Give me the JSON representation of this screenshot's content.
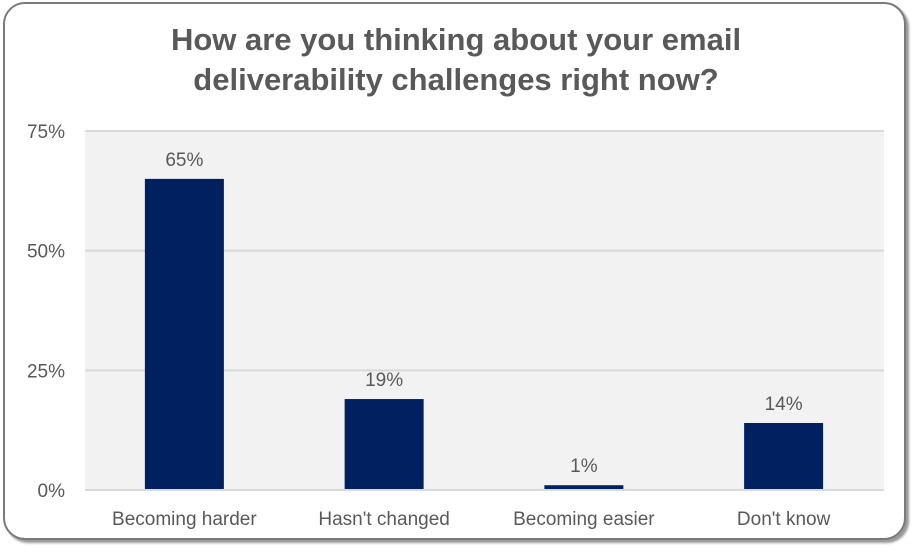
{
  "chart_data": {
    "type": "bar",
    "title_line1": "How are you thinking about your email",
    "title_line2": "deliverability challenges right now?",
    "categories": [
      "Becoming harder",
      "Hasn't changed",
      "Becoming easier",
      "Don't know"
    ],
    "values": [
      65,
      19,
      1,
      14
    ],
    "data_labels": [
      "65%",
      "19%",
      "1%",
      "14%"
    ],
    "xlabel": "",
    "ylabel": "",
    "ylim": [
      0,
      75
    ],
    "yticks": [
      0,
      25,
      50,
      75
    ],
    "ytick_labels": [
      "0%",
      "25%",
      "50%",
      "75%"
    ],
    "grid": true,
    "legend": "none",
    "bar_color": "#002060",
    "plot_bg": "#f2f2f2",
    "grid_color": "#d9d9d9"
  }
}
